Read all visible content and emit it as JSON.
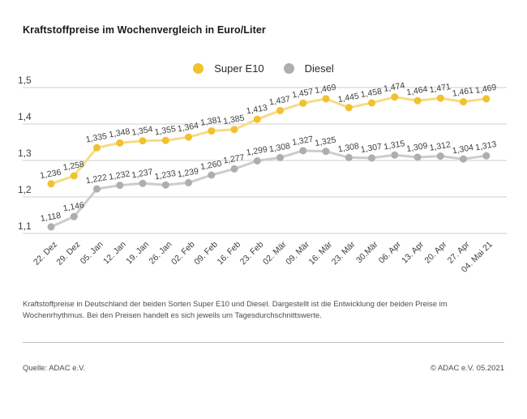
{
  "title": "Kraftstoffpreise im Wochenvergleich in Euro/Liter",
  "legend": {
    "items": [
      {
        "label": "Super E10",
        "color": "#f1c12e"
      },
      {
        "label": "Diesel",
        "color": "#aeaeae"
      }
    ]
  },
  "chart_data": {
    "type": "line",
    "title": "Kraftstoffpreise im Wochenvergleich in Euro/Liter",
    "x": [
      "22. Dez",
      "29. Dez",
      "05. Jan",
      "12. Jan",
      "19. Jan",
      "26. Jan",
      "02. Feb",
      "09. Feb",
      "16. Feb",
      "23. Feb",
      "02. Mär",
      "09. Mär",
      "16. Mär",
      "23. Mär",
      "30.Mär",
      "06. Apr",
      "13. Apr",
      "20. Apr",
      "27. Apr",
      "04. Mai 21"
    ],
    "series": [
      {
        "name": "Super E10",
        "color": "#f1c12e",
        "line_color": "#f7dc82",
        "values": [
          1.236,
          1.258,
          1.335,
          1.348,
          1.354,
          1.355,
          1.364,
          1.381,
          1.385,
          1.413,
          1.437,
          1.457,
          1.469,
          1.445,
          1.458,
          1.474,
          1.464,
          1.471,
          1.461,
          1.469
        ]
      },
      {
        "name": "Diesel",
        "color": "#aeaeae",
        "line_color": "#cccccc",
        "values": [
          1.118,
          1.146,
          1.222,
          1.232,
          1.237,
          1.233,
          1.239,
          1.26,
          1.277,
          1.299,
          1.308,
          1.327,
          1.325,
          1.308,
          1.307,
          1.315,
          1.309,
          1.312,
          1.304,
          1.313
        ]
      }
    ],
    "y_ticks": [
      "1,5",
      "1,4",
      "1,3",
      "1,2",
      "1,1"
    ],
    "ylim": [
      1.1,
      1.5
    ],
    "ylabel": "Euro/Liter",
    "xlabel": "",
    "grid": true,
    "legend_position": "top-center",
    "value_labels": true,
    "decimal_separator": ","
  },
  "footer": {
    "caption": "Kraftstoffpreise in Deutschland der beiden Sorten Super E10 und Diesel. Dargestellt ist die Entwicklung der beiden Preise im Wochenrhythmus. Bei den Preisen handelt es sich jeweils um Tagesdurchschnittswerte.",
    "source": "Quelle: ADAC e.V.",
    "copyright": "© ADAC e.V. 05.2021"
  },
  "colors": {
    "accent_yellow": "#f1c12e",
    "diesel_gray": "#aeaeae",
    "grid": "#cfcfcf",
    "text": "#3e3e3e"
  }
}
